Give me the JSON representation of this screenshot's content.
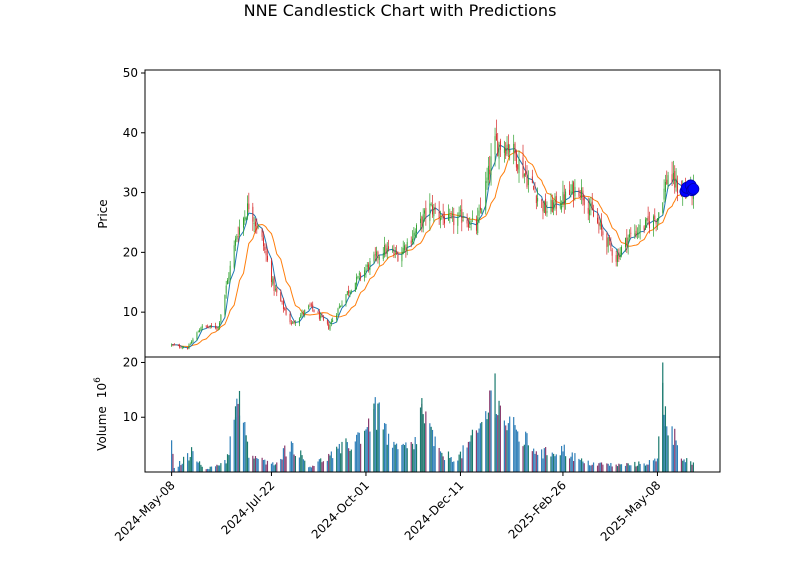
{
  "chart_data": {
    "type": "candlestick",
    "title": "NNE Candlestick Chart with Predictions",
    "price_panel": {
      "ylabel": "Price",
      "ylim": [
        2.5,
        50.5
      ],
      "yticks": [
        "10",
        "20",
        "30",
        "40",
        "50"
      ],
      "ytick_values": [
        10,
        20,
        30,
        40,
        50
      ],
      "grid": false
    },
    "volume_panel": {
      "ylabel": "Volume",
      "ylabel_multiplier": "10",
      "ylabel_exponent": "6",
      "ylim": [
        0,
        21
      ],
      "yticks": [
        "10",
        "20"
      ],
      "ytick_values": [
        10,
        20
      ],
      "unit": "millions of shares"
    },
    "x_axis": {
      "tick_labels": [
        "2024-May-08",
        "2024-Jul-22",
        "2024-Oct-01",
        "2024-Dec-11",
        "2025-Feb-26",
        "2025-May-08"
      ],
      "tick_dates": [
        "2024-05-08",
        "2024-07-22",
        "2024-10-01",
        "2024-12-11",
        "2025-02-26",
        "2025-05-08"
      ],
      "range": [
        "2024-04-18",
        "2025-06-24"
      ]
    },
    "colors": {
      "up": "#2ca02c",
      "down": "#d62728",
      "ma_short": "#1f77b4",
      "ma_long": "#ff7f0e",
      "volume_up": "#1a7a6e",
      "volume_down": "#8a3b6e",
      "volume_neutral": "#2f7fb8",
      "prediction": "#0000ff"
    },
    "price_anchors": [
      {
        "date": "2024-05-08",
        "close": 4.5
      },
      {
        "date": "2024-05-20",
        "close": 4.0
      },
      {
        "date": "2024-05-30",
        "close": 7.5
      },
      {
        "date": "2024-06-12",
        "close": 7.5
      },
      {
        "date": "2024-06-26",
        "close": 23.0
      },
      {
        "date": "2024-07-05",
        "close": 28.0
      },
      {
        "date": "2024-07-15",
        "close": 22.0
      },
      {
        "date": "2024-07-24",
        "close": 14.0
      },
      {
        "date": "2024-08-06",
        "close": 8.0
      },
      {
        "date": "2024-08-20",
        "close": 11.0
      },
      {
        "date": "2024-09-03",
        "close": 7.5
      },
      {
        "date": "2024-09-16",
        "close": 13.0
      },
      {
        "date": "2024-09-30",
        "close": 17.0
      },
      {
        "date": "2024-10-14",
        "close": 20.5
      },
      {
        "date": "2024-10-25",
        "close": 19.5
      },
      {
        "date": "2024-11-06",
        "close": 23.0
      },
      {
        "date": "2024-11-18",
        "close": 27.5
      },
      {
        "date": "2024-12-03",
        "close": 25.0
      },
      {
        "date": "2024-12-13",
        "close": 26.0
      },
      {
        "date": "2024-12-23",
        "close": 24.0
      },
      {
        "date": "2025-01-06",
        "close": 38.0
      },
      {
        "date": "2025-01-17",
        "close": 38.0
      },
      {
        "date": "2025-01-31",
        "close": 32.0
      },
      {
        "date": "2025-02-13",
        "close": 27.0
      },
      {
        "date": "2025-02-27",
        "close": 29.0
      },
      {
        "date": "2025-03-10",
        "close": 31.0
      },
      {
        "date": "2025-03-21",
        "close": 26.0
      },
      {
        "date": "2025-04-07",
        "close": 19.0
      },
      {
        "date": "2025-04-16",
        "close": 22.5
      },
      {
        "date": "2025-04-29",
        "close": 24.5
      },
      {
        "date": "2025-05-08",
        "close": 26.0
      },
      {
        "date": "2025-05-16",
        "close": 33.0
      },
      {
        "date": "2025-05-26",
        "close": 30.0
      },
      {
        "date": "2025-06-04",
        "close": 30.5
      }
    ],
    "volume_anchors": [
      {
        "date": "2024-05-08",
        "volume": 5.5
      },
      {
        "date": "2024-05-10",
        "volume": 0.8
      },
      {
        "date": "2024-05-24",
        "volume": 4.5
      },
      {
        "date": "2024-06-03",
        "volume": 0.5
      },
      {
        "date": "2024-06-18",
        "volume": 2.5
      },
      {
        "date": "2024-06-25",
        "volume": 12.0
      },
      {
        "date": "2024-06-28",
        "volume": 14.8
      },
      {
        "date": "2024-07-05",
        "volume": 4.0
      },
      {
        "date": "2024-07-22",
        "volume": 1.5
      },
      {
        "date": "2024-08-06",
        "volume": 6.2
      },
      {
        "date": "2024-08-20",
        "volume": 1.2
      },
      {
        "date": "2024-09-10",
        "volume": 4.5
      },
      {
        "date": "2024-09-23",
        "volume": 7.0
      },
      {
        "date": "2024-10-07",
        "volume": 12.5
      },
      {
        "date": "2024-10-10",
        "volume": 12.5
      },
      {
        "date": "2024-10-22",
        "volume": 5.0
      },
      {
        "date": "2024-11-06",
        "volume": 5.5
      },
      {
        "date": "2024-11-12",
        "volume": 13.5
      },
      {
        "date": "2024-11-25",
        "volume": 4.0
      },
      {
        "date": "2024-12-09",
        "volume": 3.0
      },
      {
        "date": "2024-12-24",
        "volume": 8.5
      },
      {
        "date": "2025-01-06",
        "volume": 18.0
      },
      {
        "date": "2025-01-09",
        "volume": 13.0
      },
      {
        "date": "2025-01-22",
        "volume": 8.5
      },
      {
        "date": "2025-02-10",
        "volume": 4.0
      },
      {
        "date": "2025-02-26",
        "volume": 5.0
      },
      {
        "date": "2025-03-14",
        "volume": 2.0
      },
      {
        "date": "2025-04-08",
        "volume": 1.5
      },
      {
        "date": "2025-04-25",
        "volume": 1.8
      },
      {
        "date": "2025-05-08",
        "volume": 2.5
      },
      {
        "date": "2025-05-12",
        "volume": 20.0
      },
      {
        "date": "2025-05-14",
        "volume": 12.0
      },
      {
        "date": "2025-05-28",
        "volume": 3.0
      },
      {
        "date": "2025-06-06",
        "volume": 1.5
      }
    ],
    "predictions": [
      {
        "date": "2025-05-29",
        "price": 30.2
      },
      {
        "date": "2025-05-30",
        "price": 30.8
      },
      {
        "date": "2025-06-02",
        "price": 31.2
      },
      {
        "date": "2025-06-03",
        "price": 30.4
      },
      {
        "date": "2025-06-04",
        "price": 30.6
      }
    ]
  }
}
